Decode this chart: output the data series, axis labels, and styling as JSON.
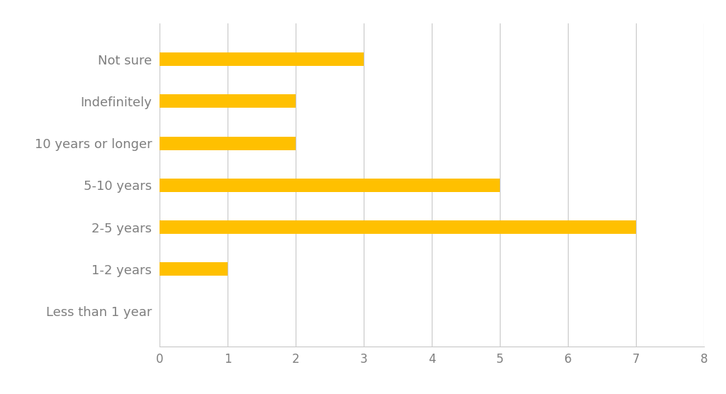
{
  "categories": [
    "Less than 1 year",
    "1-2 years",
    "2-5 years",
    "5-10 years",
    "10 years or longer",
    "Indefinitely",
    "Not sure"
  ],
  "values": [
    0,
    1,
    7,
    5,
    2,
    2,
    3
  ],
  "bar_color": "#FFC000",
  "xlim": [
    0,
    8
  ],
  "xticks": [
    0,
    1,
    2,
    3,
    4,
    5,
    6,
    7,
    8
  ],
  "background_color": "#ffffff",
  "grid_color": "#c8c8c8",
  "bar_height": 0.32,
  "label_fontsize": 13,
  "tick_fontsize": 12,
  "label_color": "#7f7f7f",
  "figsize": [
    10.24,
    5.56
  ],
  "dpi": 100
}
